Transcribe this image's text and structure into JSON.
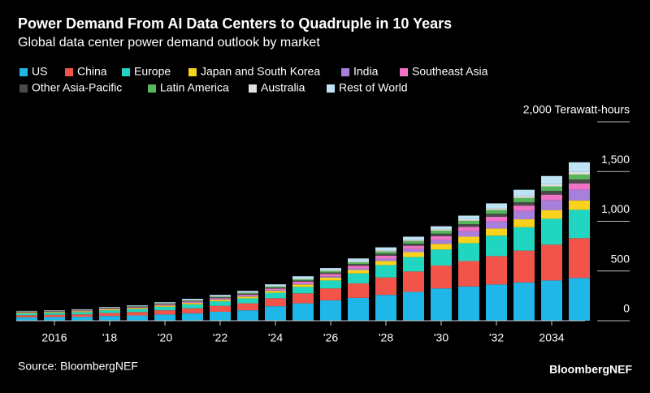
{
  "chart_data": {
    "type": "stacked-bar",
    "title": "Power Demand From AI Data Centers to Quadruple in 10 Years",
    "subtitle": "Global data center power demand outlook by market",
    "source": "Source: BloombergNEF",
    "brand": "BloombergNEF",
    "categories": [
      null,
      "2016",
      null,
      "'18",
      null,
      "'20",
      null,
      "'22",
      null,
      "'24",
      null,
      "'26",
      null,
      "'28",
      null,
      "'30",
      null,
      "'32",
      null,
      "2034",
      null
    ],
    "ylim": [
      0,
      2000
    ],
    "yticks": [
      0,
      500,
      {
        "value": 1000,
        "label": "1,000"
      },
      {
        "value": 1500,
        "label": "1,500"
      },
      {
        "value": 2000,
        "label": "2,000 Terawatt-hours"
      }
    ],
    "grid": true,
    "series": [
      {
        "name": "US",
        "color": "#1fb6e8",
        "values": [
          35,
          37,
          40,
          48,
          53,
          63,
          75,
          90,
          105,
          146,
          175,
          205,
          230,
          260,
          290,
          325,
          345,
          365,
          385,
          405,
          430
        ]
      },
      {
        "name": "China",
        "color": "#f2544a",
        "values": [
          20,
          22,
          24,
          30,
          34,
          42,
          50,
          60,
          70,
          80,
          100,
          120,
          145,
          175,
          205,
          230,
          255,
          285,
          320,
          360,
          400
        ]
      },
      {
        "name": "Europe",
        "color": "#21d6c0",
        "values": [
          20,
          21,
          23,
          27,
          30,
          35,
          40,
          45,
          50,
          55,
          65,
          80,
          100,
          125,
          145,
          160,
          180,
          205,
          235,
          260,
          285
        ]
      },
      {
        "name": "Japan and South Korea",
        "color": "#f8d21c",
        "values": [
          8,
          8,
          9,
          10,
          11,
          12,
          14,
          16,
          18,
          20,
          25,
          30,
          35,
          42,
          50,
          58,
          65,
          72,
          80,
          88,
          95
        ]
      },
      {
        "name": "India",
        "color": "#a77fdd",
        "values": [
          2,
          2,
          2,
          3,
          3,
          4,
          5,
          6,
          7,
          8,
          10,
          13,
          17,
          22,
          30,
          40,
          55,
          70,
          85,
          97,
          107
        ]
      },
      {
        "name": "Southeast Asia",
        "color": "#ef74c7",
        "values": [
          3,
          3,
          4,
          5,
          5,
          7,
          8,
          10,
          12,
          14,
          18,
          22,
          26,
          30,
          34,
          38,
          43,
          48,
          53,
          58,
          63
        ]
      },
      {
        "name": "Other Asia-Pacific",
        "color": "#4a4a4a",
        "values": [
          3,
          3,
          3,
          4,
          5,
          6,
          7,
          8,
          9,
          10,
          12,
          14,
          17,
          20,
          22,
          25,
          28,
          31,
          34,
          37,
          40
        ]
      },
      {
        "name": "Latin America",
        "color": "#56b659",
        "values": [
          2,
          3,
          3,
          4,
          4,
          5,
          6,
          7,
          8,
          10,
          12,
          15,
          18,
          22,
          26,
          30,
          34,
          38,
          42,
          46,
          50
        ]
      },
      {
        "name": "Australia",
        "color": "#e0e0e0",
        "values": [
          2,
          2,
          2,
          2,
          3,
          3,
          4,
          4,
          5,
          6,
          7,
          8,
          9,
          11,
          13,
          15,
          17,
          19,
          21,
          23,
          25
        ]
      },
      {
        "name": "Rest of World",
        "color": "#bde3f5",
        "values": [
          4,
          4,
          5,
          5,
          7,
          9,
          11,
          14,
          16,
          17,
          23,
          23,
          29,
          31,
          30,
          29,
          35,
          47,
          62,
          81,
          98
        ]
      }
    ]
  }
}
